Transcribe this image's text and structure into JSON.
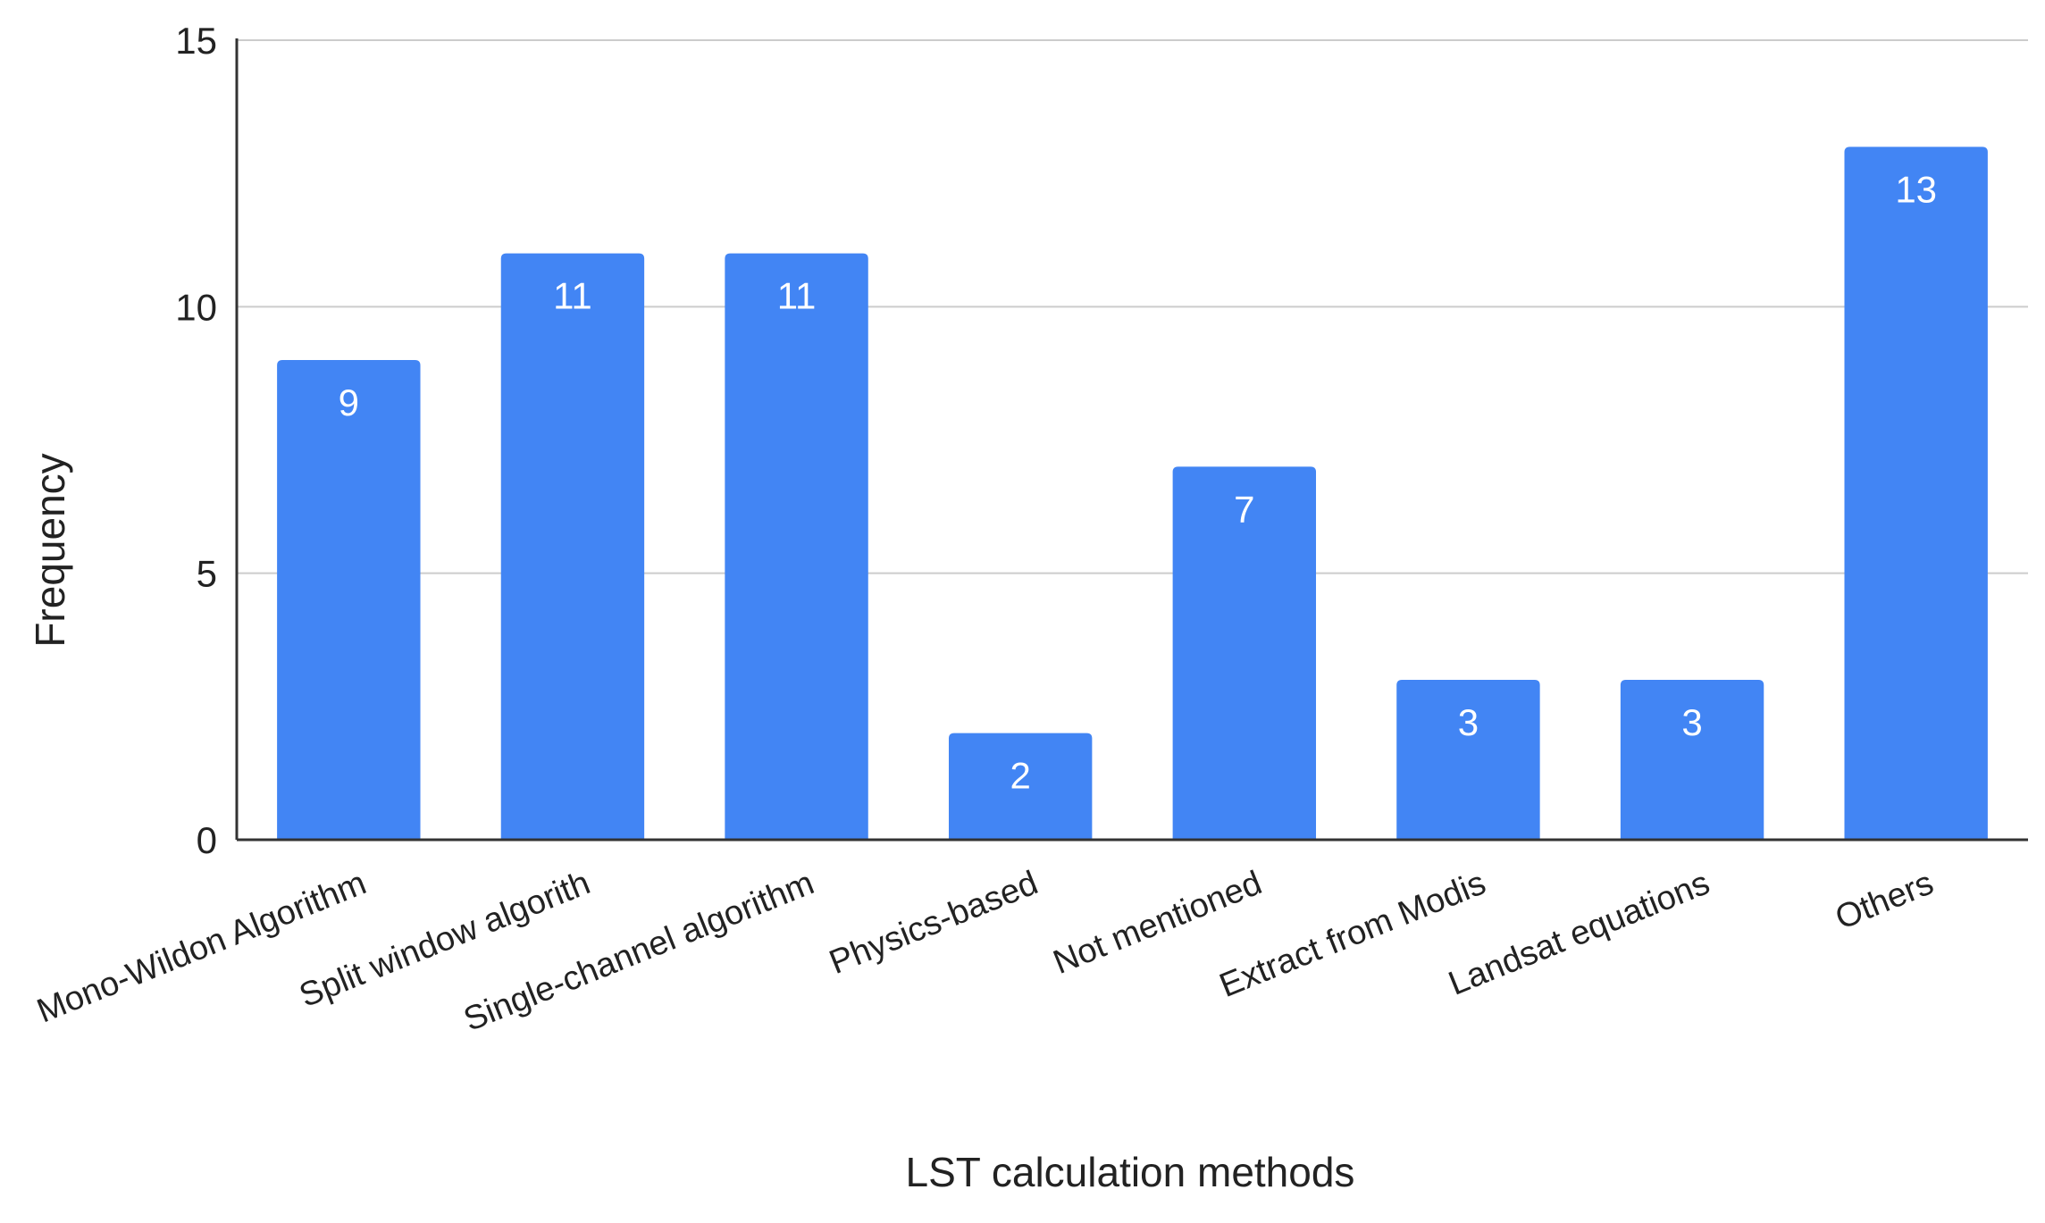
{
  "chart_data": {
    "type": "bar",
    "title": "",
    "xlabel": "LST calculation methods",
    "ylabel": "Frequency",
    "categories": [
      "Mono-Wildon Algorithm",
      "Split window algorith",
      "Single-channel algorithm",
      "Physics-based",
      "Not mentioned",
      "Extract from Modis",
      "Landsat equations",
      "Others"
    ],
    "values": [
      9,
      11,
      11,
      2,
      7,
      3,
      3,
      13
    ],
    "ylim": [
      0,
      15
    ],
    "yticks": [
      0,
      5,
      10,
      15
    ],
    "grid": true,
    "legend": "none",
    "colors": {
      "bar": "#4285f4",
      "grid": "#cccccc",
      "axis": "#333333",
      "bar_label": "#ffffff",
      "text": "#222222"
    }
  }
}
